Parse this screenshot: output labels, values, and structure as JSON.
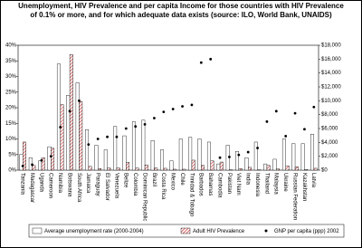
{
  "chart_data": {
    "type": "bar",
    "title": "Unemployment, HIV Prevalence and per capita Income for those countries with HIV Prevalence of 0.1% or more, and for which adequate data exists (source: ILO, World Bank, UNAIDS)",
    "categories": [
      "Tanzania",
      "Madagascar",
      "Uganda",
      "Cameroon",
      "Namibia",
      "Botswana",
      "South Africa",
      "Jamaica",
      "Paraguay",
      "El Salvador",
      "Venezuela",
      "Belize",
      "Colombia",
      "Dominican Republic",
      "Brazil",
      "Costa Rica",
      "Mexico",
      "Chile",
      "Trinidad & Tobago",
      "Barbados",
      "Bahamas",
      "Cambodia",
      "Pakistan",
      "Viet Nam",
      "India",
      "Indonesia",
      "Thailand",
      "Malaysia",
      "Ukraine",
      "Russian Federation",
      "Kazakhstan",
      "Latvia"
    ],
    "series": [
      {
        "name": "Average unemployment rate (2000-2004)",
        "color": "#ffffff",
        "values": [
          5,
          4,
          3,
          7.5,
          34,
          24,
          28,
          13,
          8,
          6.5,
          14,
          11,
          15.5,
          16,
          9.5,
          6.5,
          3,
          10,
          10.5,
          10,
          9,
          2,
          8,
          6,
          4,
          9,
          2,
          3.5,
          10,
          8.5,
          8.5,
          11.5
        ]
      },
      {
        "name": "Adult HIV Prevalence",
        "color": "#cc3333",
        "values": [
          9,
          1.5,
          4,
          7,
          21,
          37,
          22,
          1.2,
          0.5,
          0.7,
          0.7,
          2.5,
          0.7,
          1.7,
          0.7,
          0.6,
          0.3,
          0.3,
          3.2,
          1.5,
          3,
          2.6,
          0.1,
          0.5,
          0.9,
          0.1,
          1.5,
          0.4,
          1.4,
          1.1,
          0.2,
          0.6
        ]
      },
      {
        "name": "GNP per capita (ppp) 2002",
        "color": "#000000",
        "axis": "y2",
        "values": [
          600,
          800,
          1400,
          2000,
          6200,
          8500,
          10000,
          3700,
          4500,
          4800,
          4800,
          6000,
          6300,
          6600,
          7500,
          8400,
          8800,
          9200,
          9400,
          15500,
          16000,
          1800,
          1900,
          2200,
          2600,
          3200,
          7000,
          8500,
          4900,
          8200,
          5900,
          9100
        ]
      }
    ],
    "ylim": [
      0,
      40
    ],
    "yticks": [
      {
        "value": 0,
        "label": "0%"
      },
      {
        "value": 5,
        "label": "5%"
      },
      {
        "value": 10,
        "label": "10%"
      },
      {
        "value": 15,
        "label": "15%"
      },
      {
        "value": 20,
        "label": "20%"
      },
      {
        "value": 25,
        "label": "25%"
      },
      {
        "value": 30,
        "label": "30%"
      },
      {
        "value": 35,
        "label": "35%"
      },
      {
        "value": 40,
        "label": "40%"
      }
    ],
    "y2lim": [
      0,
      18000
    ],
    "y2ticks": [
      {
        "value": 0,
        "label": "$0"
      },
      {
        "value": 2000,
        "label": "$2,000"
      },
      {
        "value": 4000,
        "label": "$4,000"
      },
      {
        "value": 6000,
        "label": "$6,000"
      },
      {
        "value": 8000,
        "label": "$8,000"
      },
      {
        "value": 10000,
        "label": "$10,000"
      },
      {
        "value": 12000,
        "label": "$12,000"
      },
      {
        "value": 14000,
        "label": "$14,000"
      },
      {
        "value": 16000,
        "label": "$16,000"
      },
      {
        "value": 18000,
        "label": "$18,000"
      }
    ]
  }
}
